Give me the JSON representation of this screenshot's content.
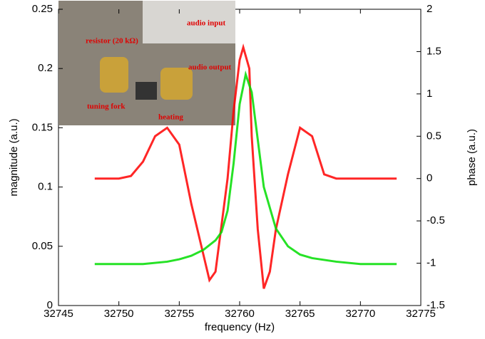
{
  "chart_data": {
    "type": "line",
    "xlabel": "frequency (Hz)",
    "ylabel": "magnitude (a.u.)",
    "y2label": "phase (a.u.)",
    "xlim": [
      32745,
      32775
    ],
    "xticks": [
      32745,
      32750,
      32755,
      32760,
      32765,
      32770,
      32775
    ],
    "ylim": [
      0,
      0.25
    ],
    "yticks": [
      0,
      0.05,
      0.1,
      0.15,
      0.2,
      0.25
    ],
    "y2lim": [
      -1.5,
      2
    ],
    "y2ticks": [
      -1.5,
      -1,
      -0.5,
      0,
      0.5,
      1,
      1.5,
      2
    ],
    "series": [
      {
        "color": "#ff0000",
        "axis": "y2",
        "x": [
          32748,
          32750,
          32751,
          32752,
          32753,
          32754,
          32755,
          32756,
          32757,
          32757.5,
          32758,
          32759,
          32759.5,
          32760,
          32760.3,
          32760.8,
          32761,
          32761.5,
          32762,
          32762.5,
          32763,
          32764,
          32765,
          32766,
          32767,
          32768,
          32770,
          32773
        ],
        "values": [
          0,
          0,
          0.03,
          0.2,
          0.5,
          0.6,
          0.4,
          -0.3,
          -0.9,
          -1.2,
          -1.1,
          0,
          0.8,
          1.4,
          1.55,
          1.3,
          0.5,
          -0.6,
          -1.3,
          -1.1,
          -0.6,
          0.05,
          0.6,
          0.5,
          0.05,
          0,
          0,
          0
        ]
      },
      {
        "color": "#00dd00",
        "x": [
          32748,
          32750,
          32752,
          32754,
          32755,
          32756,
          32757,
          32758,
          32758.5,
          32759,
          32759.5,
          32760,
          32760.5,
          32761,
          32761.5,
          32762,
          32763,
          32764,
          32765,
          32766,
          32768,
          32770,
          32773
        ],
        "values": [
          0.035,
          0.035,
          0.035,
          0.037,
          0.039,
          0.042,
          0.047,
          0.055,
          0.062,
          0.08,
          0.12,
          0.17,
          0.195,
          0.18,
          0.14,
          0.1,
          0.065,
          0.05,
          0.043,
          0.04,
          0.037,
          0.035,
          0.035
        ]
      }
    ],
    "inset_labels": [
      "resistor (20 kΩ)",
      "audio input",
      "audio output",
      "tuning fork",
      "heating"
    ]
  }
}
